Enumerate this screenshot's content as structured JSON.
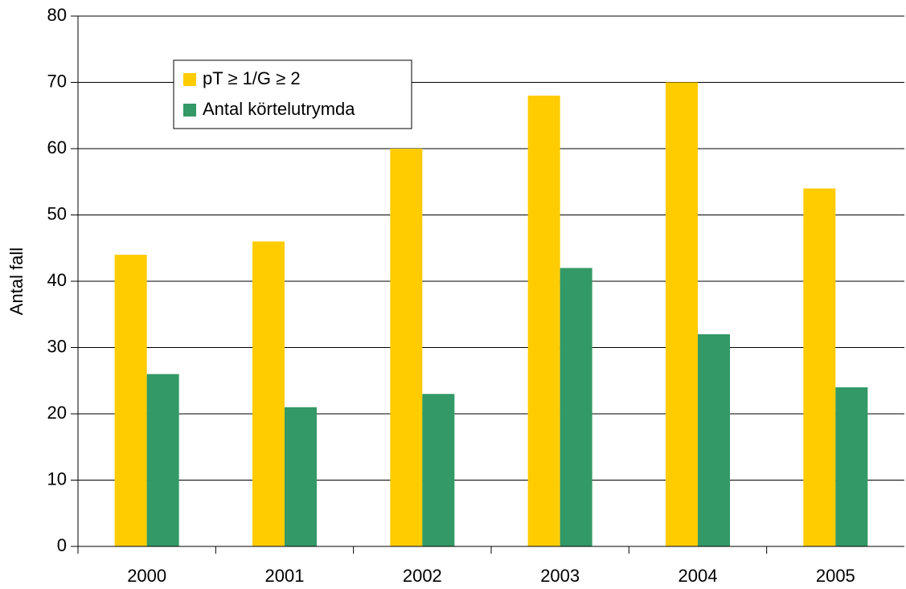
{
  "chart_data": {
    "type": "bar",
    "categories": [
      "2000",
      "2001",
      "2002",
      "2003",
      "2004",
      "2005"
    ],
    "series": [
      {
        "name": "pT ≥ 1/G ≥ 2",
        "color": "#ffcc00",
        "values": [
          44,
          46,
          60,
          68,
          70,
          54
        ]
      },
      {
        "name": "Antal körtelutrymda",
        "color": "#339966",
        "values": [
          26,
          21,
          23,
          42,
          32,
          24
        ]
      }
    ],
    "y_label": "Antal fall",
    "ylim": [
      0,
      80
    ],
    "yticks": [
      0,
      10,
      20,
      30,
      40,
      50,
      60,
      70,
      80
    ],
    "grid": true,
    "legend": "upper-left"
  }
}
